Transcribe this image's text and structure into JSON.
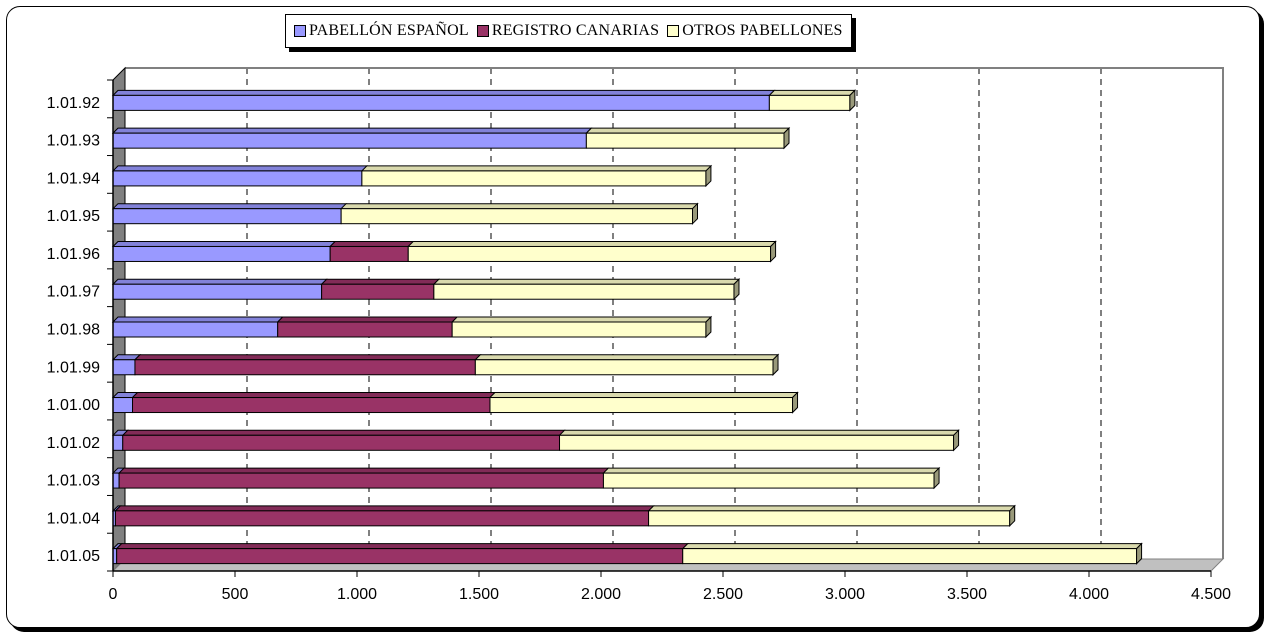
{
  "chart_data": {
    "type": "bar",
    "orientation": "horizontal",
    "stacked": true,
    "title": "",
    "xlabel": "",
    "ylabel": "",
    "categories": [
      "1.01.92",
      "1.01.93",
      "1.01.94",
      "1.01.95",
      "1.01.96",
      "1.01.97",
      "1.01.98",
      "1.01.99",
      "1.01.00",
      "1.01.02",
      "1.01.03",
      "1.01.04",
      "1.01.05"
    ],
    "series": [
      {
        "name": "PABELLÓN ESPAÑOL",
        "color": "#9999ff",
        "values": [
          2690,
          1940,
          1020,
          935,
          890,
          855,
          675,
          90,
          80,
          40,
          25,
          10,
          15
        ]
      },
      {
        "name": "REGISTRO CANARIAS",
        "color": "#993366",
        "values": [
          0,
          0,
          0,
          0,
          320,
          460,
          715,
          1395,
          1465,
          1790,
          1985,
          2185,
          2320
        ]
      },
      {
        "name": "OTROS PABELLONES",
        "color": "#ffffcc",
        "values": [
          330,
          810,
          1410,
          1440,
          1485,
          1230,
          1040,
          1220,
          1240,
          1615,
          1355,
          1480,
          1860
        ]
      }
    ],
    "xlim": [
      0,
      4500
    ],
    "xticks": [
      0,
      500,
      1000,
      1500,
      2000,
      2500,
      3000,
      3500,
      4000,
      4500
    ],
    "xtick_labels": [
      "0",
      "500",
      "1.000",
      "1.500",
      "2.000",
      "2.500",
      "3.000",
      "3.500",
      "4.000",
      "4.500"
    ],
    "grid": "vertical-dashed",
    "legend_position": "top-center"
  }
}
